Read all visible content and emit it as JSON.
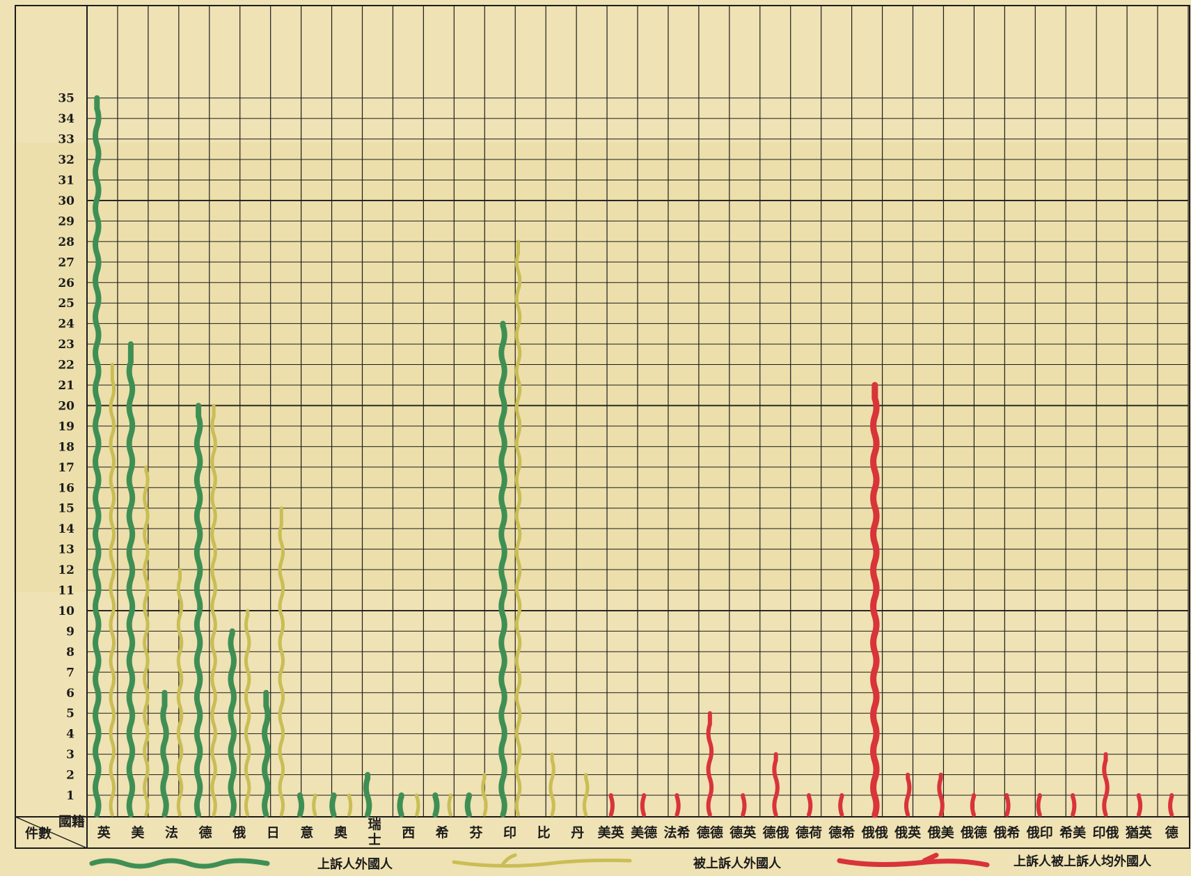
{
  "chart_data": {
    "type": "bar",
    "ylim": [
      0,
      36
    ],
    "y_ticks": [
      1,
      2,
      3,
      4,
      5,
      6,
      7,
      8,
      9,
      10,
      11,
      12,
      13,
      14,
      15,
      16,
      17,
      18,
      19,
      20,
      21,
      22,
      23,
      24,
      25,
      26,
      27,
      28,
      29,
      30,
      31,
      32,
      33,
      34,
      35
    ],
    "corner_label": {
      "row_header": "國籍",
      "value_header": "件數"
    },
    "colors": {
      "plaintiff": "#3f8f55",
      "defendant": "#c9bd55",
      "mutual": "#d8343a",
      "grid": "#1c1c1c",
      "paper": "#efe2b4"
    },
    "groups": [
      {
        "name": "plaintiff_defendant",
        "categories": [
          "英",
          "美",
          "法",
          "德",
          "俄",
          "日",
          "意",
          "奧",
          "瑞士",
          "西",
          "希",
          "芬",
          "印",
          "比",
          "丹"
        ],
        "series": [
          {
            "name": "上訴人外國人",
            "values": [
              35,
              23,
              6,
              20,
              9,
              6,
              1,
              1,
              2,
              1,
              1,
              1,
              24,
              0,
              0
            ]
          },
          {
            "name": "被上訴人外國人",
            "values": [
              22,
              17,
              12,
              20,
              10,
              15,
              1,
              1,
              0,
              1,
              1,
              2,
              28,
              3,
              2
            ]
          }
        ]
      },
      {
        "name": "mutual",
        "series_name": "上訴人被上訴人均外國人",
        "categories": [
          "美英",
          "美德",
          "法希",
          "德德",
          "德英",
          "德俄",
          "德荷",
          "德希",
          "俄俄",
          "俄英",
          "俄美",
          "俄德",
          "俄希",
          "俄印",
          "希美",
          "印俄",
          "猶英",
          "德"
        ],
        "values": [
          1,
          1,
          1,
          5,
          1,
          3,
          1,
          1,
          21,
          2,
          2,
          1,
          1,
          1,
          1,
          3,
          1,
          1
        ]
      }
    ]
  },
  "legend": [
    {
      "label": "上訴人外國人",
      "color_key": "plaintiff"
    },
    {
      "label": "被上訴人外國人",
      "color_key": "defendant"
    },
    {
      "label": "上訴人被上訴人均外國人",
      "color_key": "mutual"
    }
  ]
}
